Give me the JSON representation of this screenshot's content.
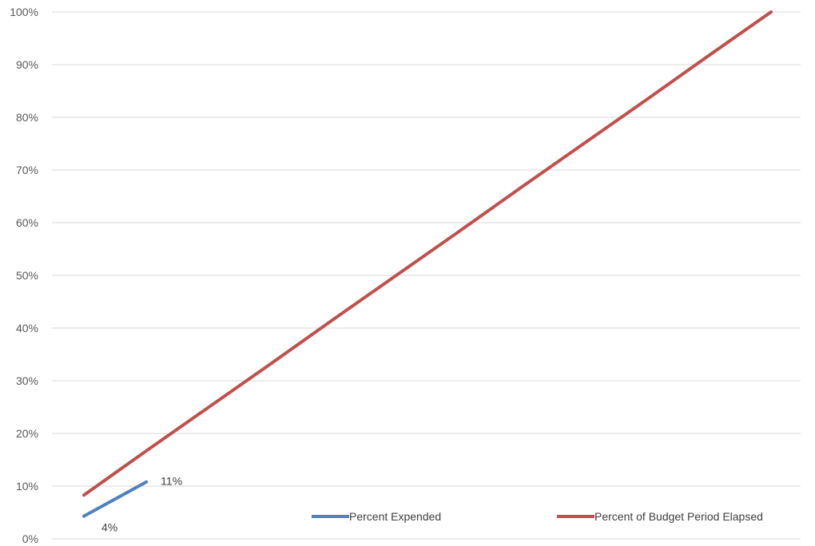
{
  "chart_data": {
    "type": "line",
    "title": "",
    "xlabel": "",
    "ylabel": "",
    "ylim": [
      0,
      100
    ],
    "y_ticks": [
      "0%",
      "10%",
      "20%",
      "30%",
      "40%",
      "50%",
      "60%",
      "70%",
      "80%",
      "90%",
      "100%"
    ],
    "grid": true,
    "legend_position": "bottom-right",
    "x": [
      1,
      2,
      3,
      4,
      5,
      6,
      7,
      8,
      9,
      10,
      11,
      12
    ],
    "series": [
      {
        "name": "Percent Expended",
        "color": "#4f81bd",
        "values": [
          4.3,
          10.8,
          null,
          null,
          null,
          null,
          null,
          null,
          null,
          null,
          null,
          null
        ],
        "data_labels": [
          "4%",
          "11%",
          "",
          "",
          "",
          "",
          "",
          "",
          "",
          "",
          "",
          ""
        ]
      },
      {
        "name": "Percent of Budget Period Elapsed",
        "color": "#c0504d",
        "values": [
          8.3,
          16.7,
          25.0,
          33.3,
          41.7,
          50.0,
          58.3,
          66.7,
          75.0,
          83.3,
          91.7,
          100.0
        ]
      }
    ]
  }
}
